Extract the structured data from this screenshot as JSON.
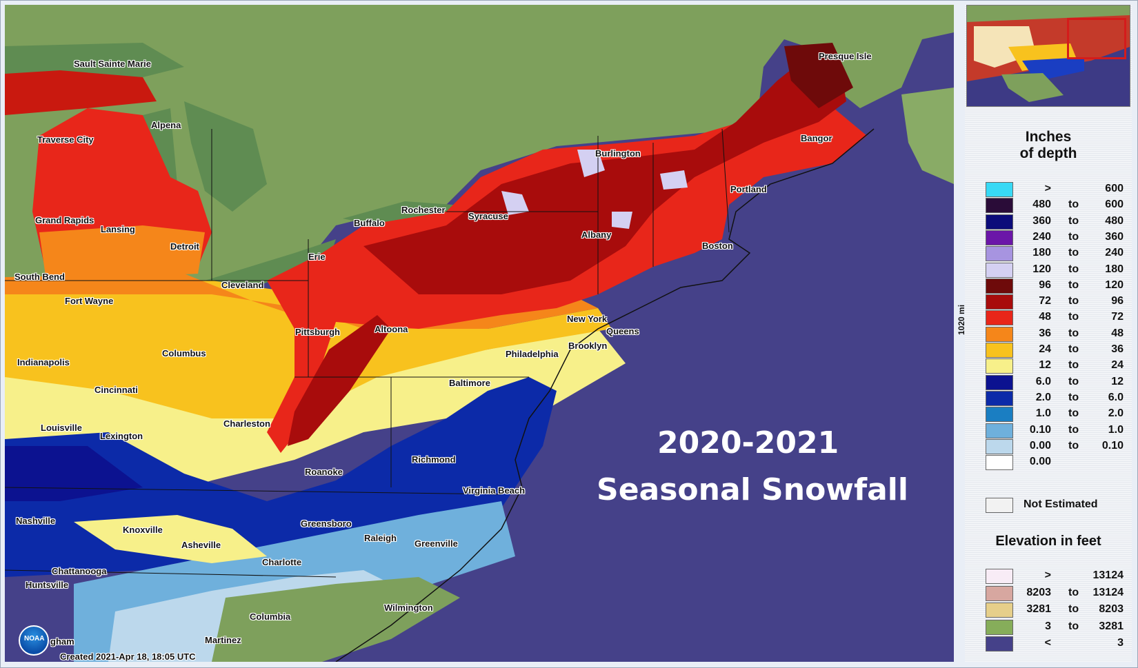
{
  "map": {
    "title_line1": "2020-2021",
    "title_line2": "Seasonal Snowfall",
    "created_label": "Created 2021-Apr 18, 18:05 UTC",
    "scale_label": "1020 mi",
    "logo_text": "NOAA",
    "colors": {
      "ocean": "#454189",
      "land_canada": "#7ea05c",
      "lakes": "#5f8c52"
    },
    "cities": [
      {
        "name": "Sault Sainte Marie"
      },
      {
        "name": "Presque Isle"
      },
      {
        "name": "Alpena"
      },
      {
        "name": "Traverse City"
      },
      {
        "name": "Bangor"
      },
      {
        "name": "Burlington"
      },
      {
        "name": "Portland"
      },
      {
        "name": "Grand Rapids"
      },
      {
        "name": "Lansing"
      },
      {
        "name": "Rochester"
      },
      {
        "name": "Syracuse"
      },
      {
        "name": "Buffalo"
      },
      {
        "name": "Detroit"
      },
      {
        "name": "Albany"
      },
      {
        "name": "Boston"
      },
      {
        "name": "Erie"
      },
      {
        "name": "South Bend"
      },
      {
        "name": "Cleveland"
      },
      {
        "name": "Fort Wayne"
      },
      {
        "name": "New York"
      },
      {
        "name": "Queens"
      },
      {
        "name": "Pittsburgh"
      },
      {
        "name": "Altoona"
      },
      {
        "name": "Brooklyn"
      },
      {
        "name": "Columbus"
      },
      {
        "name": "Philadelphia"
      },
      {
        "name": "Indianapolis"
      },
      {
        "name": "Baltimore"
      },
      {
        "name": "Cincinnati"
      },
      {
        "name": "Charleston"
      },
      {
        "name": "Louisville"
      },
      {
        "name": "Lexington"
      },
      {
        "name": "Richmond"
      },
      {
        "name": "Roanoke"
      },
      {
        "name": "Virginia Beach"
      },
      {
        "name": "Nashville"
      },
      {
        "name": "Knoxville"
      },
      {
        "name": "Greensboro"
      },
      {
        "name": "Raleigh"
      },
      {
        "name": "Greenville"
      },
      {
        "name": "Asheville"
      },
      {
        "name": "Charlotte"
      },
      {
        "name": "Chattanooga"
      },
      {
        "name": "Huntsville"
      },
      {
        "name": "Wilmington"
      },
      {
        "name": "Columbia"
      },
      {
        "name": "Martinez"
      },
      {
        "name": "gham"
      }
    ]
  },
  "legend": {
    "depth_title_line1": "Inches",
    "depth_title_line2": "of depth",
    "to_word": "to",
    "depth_rows": [
      {
        "lo": ">",
        "to": "",
        "hi": "600",
        "color": "#38d9f5"
      },
      {
        "lo": "480",
        "to": "to",
        "hi": "600",
        "color": "#2a0c38"
      },
      {
        "lo": "360",
        "to": "to",
        "hi": "480",
        "color": "#0c0c7a"
      },
      {
        "lo": "240",
        "to": "to",
        "hi": "360",
        "color": "#6b16a8"
      },
      {
        "lo": "180",
        "to": "to",
        "hi": "240",
        "color": "#a794e0"
      },
      {
        "lo": "120",
        "to": "to",
        "hi": "180",
        "color": "#d4d0f2"
      },
      {
        "lo": "96",
        "to": "to",
        "hi": "120",
        "color": "#6e0a0a"
      },
      {
        "lo": "72",
        "to": "to",
        "hi": "96",
        "color": "#a80c0c"
      },
      {
        "lo": "48",
        "to": "to",
        "hi": "72",
        "color": "#e8261a"
      },
      {
        "lo": "36",
        "to": "to",
        "hi": "48",
        "color": "#f5861a"
      },
      {
        "lo": "24",
        "to": "to",
        "hi": "36",
        "color": "#f8c21e"
      },
      {
        "lo": "12",
        "to": "to",
        "hi": "24",
        "color": "#f7f08a"
      },
      {
        "lo": "6.0",
        "to": "to",
        "hi": "12",
        "color": "#0c1290"
      },
      {
        "lo": "2.0",
        "to": "to",
        "hi": "6.0",
        "color": "#0c2aa8"
      },
      {
        "lo": "1.0",
        "to": "to",
        "hi": "2.0",
        "color": "#1a7ec2"
      },
      {
        "lo": "0.10",
        "to": "to",
        "hi": "1.0",
        "color": "#6fb0dc"
      },
      {
        "lo": "0.00",
        "to": "to",
        "hi": "0.10",
        "color": "#bcd8ec"
      },
      {
        "lo": "0.00",
        "to": "",
        "hi": "",
        "color": "#ffffff"
      }
    ],
    "not_estimated_label": "Not Estimated",
    "not_estimated_color": "#f2f2f2",
    "elevation_title": "Elevation in feet",
    "elevation_rows": [
      {
        "lo": ">",
        "to": "",
        "hi": "13124",
        "color": "#f8ecf6"
      },
      {
        "lo": "8203",
        "to": "to",
        "hi": "13124",
        "color": "#d7a7a0"
      },
      {
        "lo": "3281",
        "to": "to",
        "hi": "8203",
        "color": "#e6cf8a"
      },
      {
        "lo": "3",
        "to": "to",
        "hi": "3281",
        "color": "#86ad5a"
      },
      {
        "lo": "<",
        "to": "",
        "hi": "3",
        "color": "#454189"
      }
    ]
  }
}
